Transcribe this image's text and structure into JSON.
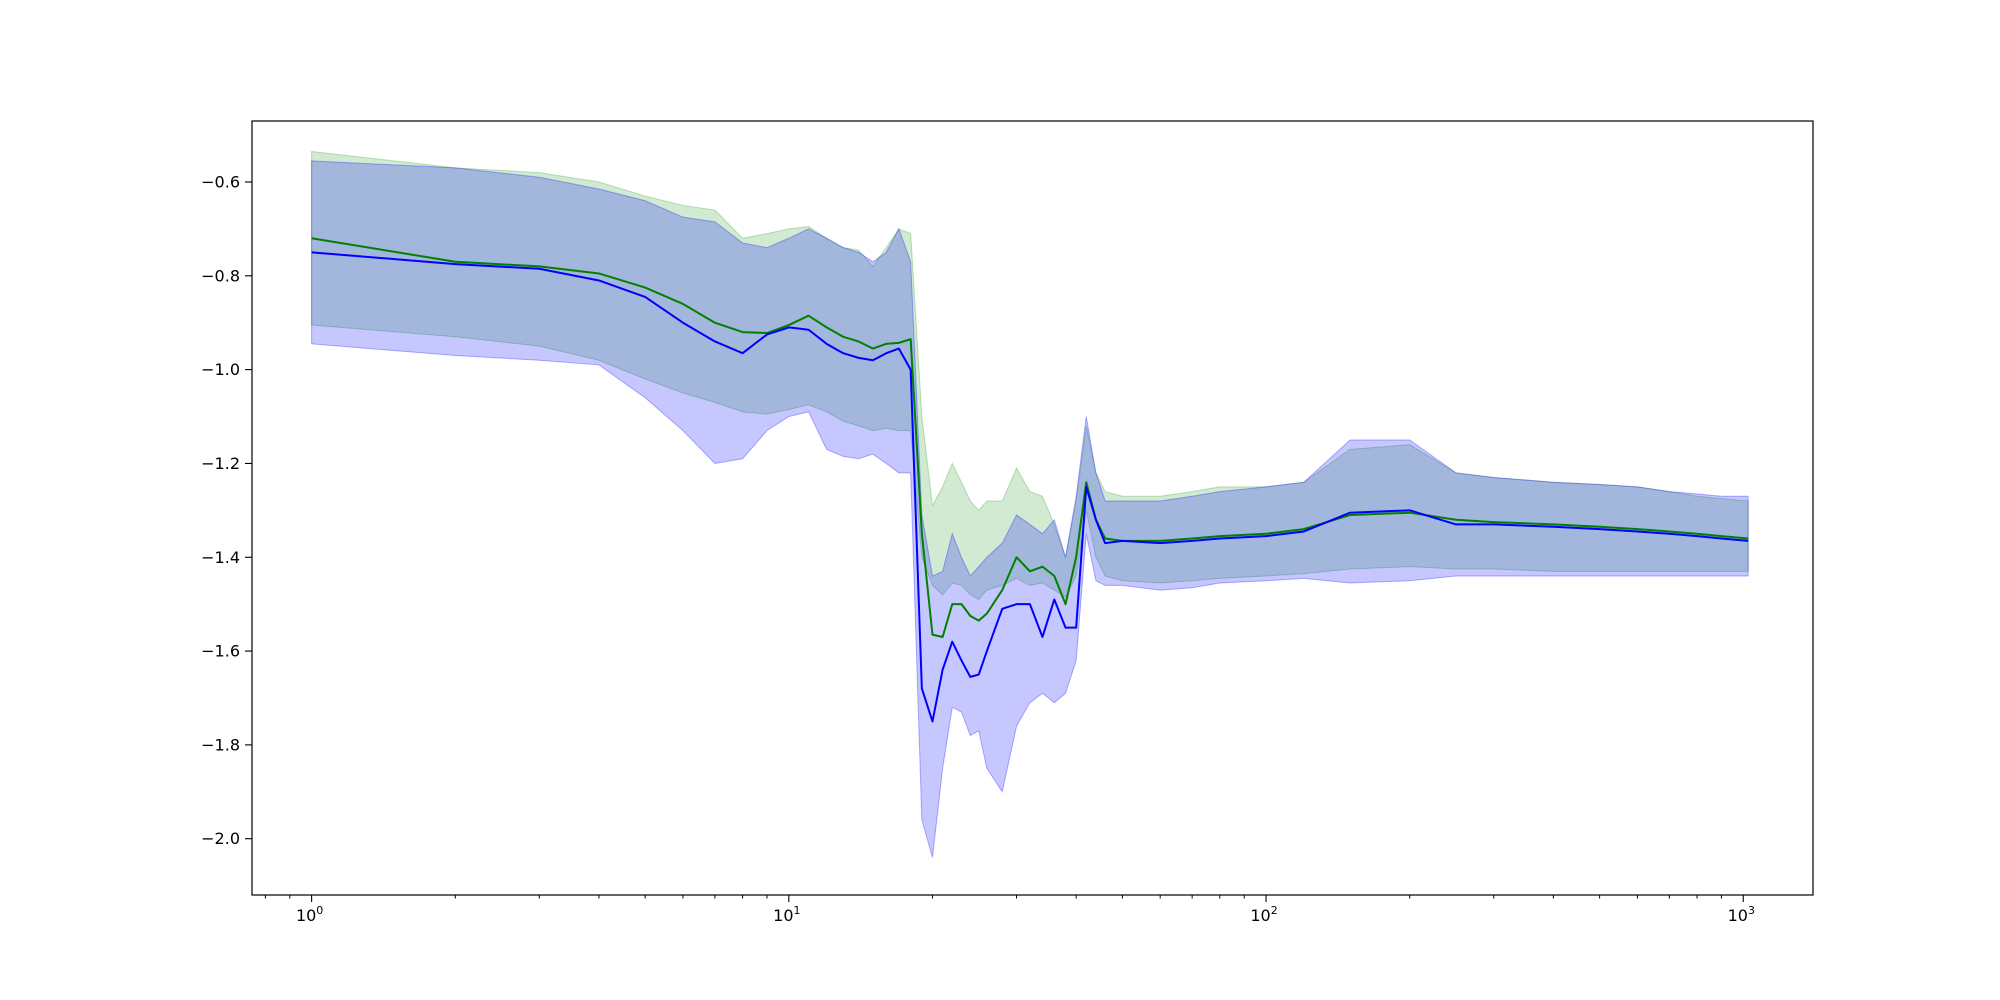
{
  "chart_data": {
    "type": "line",
    "title": "",
    "xlabel": "",
    "ylabel": "",
    "x_scale": "log",
    "xlim": [
      0.75,
      1400
    ],
    "ylim": [
      -2.12,
      -0.47
    ],
    "x_ticks": [
      {
        "value": 1,
        "base": "10",
        "exp": "0"
      },
      {
        "value": 10,
        "base": "10",
        "exp": "1"
      },
      {
        "value": 100,
        "base": "10",
        "exp": "2"
      },
      {
        "value": 1000,
        "base": "10",
        "exp": "3"
      }
    ],
    "y_ticks": [
      {
        "value": -0.6,
        "label": "−0.6"
      },
      {
        "value": -0.8,
        "label": "−0.8"
      },
      {
        "value": -1.0,
        "label": "−1.0"
      },
      {
        "value": -1.2,
        "label": "−1.2"
      },
      {
        "value": -1.4,
        "label": "−1.4"
      },
      {
        "value": -1.6,
        "label": "−1.6"
      },
      {
        "value": -1.8,
        "label": "−1.8"
      },
      {
        "value": -2.0,
        "label": "−2.0"
      }
    ],
    "grid": false,
    "legend": "none",
    "series": [
      {
        "color": "#008000",
        "band_color": "#2ca02c",
        "x": [
          1,
          2,
          3,
          4,
          5,
          6,
          7,
          8,
          9,
          10,
          11,
          12,
          13,
          14,
          15,
          16,
          17,
          18,
          19,
          20,
          21,
          22,
          23,
          24,
          25,
          26,
          28,
          30,
          32,
          34,
          36,
          38,
          40,
          42,
          44,
          46,
          50,
          60,
          70,
          80,
          100,
          120,
          150,
          200,
          250,
          300,
          400,
          500,
          600,
          700,
          800,
          900,
          1024
        ],
        "values": [
          -0.72,
          -0.77,
          -0.78,
          -0.795,
          -0.825,
          -0.86,
          -0.9,
          -0.92,
          -0.922,
          -0.905,
          -0.885,
          -0.91,
          -0.93,
          -0.94,
          -0.955,
          -0.945,
          -0.943,
          -0.935,
          -1.35,
          -1.565,
          -1.57,
          -1.5,
          -1.5,
          -1.525,
          -1.535,
          -1.52,
          -1.47,
          -1.4,
          -1.43,
          -1.42,
          -1.44,
          -1.5,
          -1.4,
          -1.24,
          -1.32,
          -1.36,
          -1.365,
          -1.365,
          -1.36,
          -1.355,
          -1.35,
          -1.34,
          -1.31,
          -1.305,
          -1.32,
          -1.325,
          -1.33,
          -1.335,
          -1.34,
          -1.345,
          -1.35,
          -1.355,
          -1.36
        ],
        "lower": [
          -0.905,
          -0.93,
          -0.95,
          -0.98,
          -1.02,
          -1.05,
          -1.07,
          -1.09,
          -1.095,
          -1.085,
          -1.075,
          -1.09,
          -1.11,
          -1.12,
          -1.13,
          -1.125,
          -1.13,
          -1.13,
          -1.4,
          -1.46,
          -1.48,
          -1.455,
          -1.46,
          -1.48,
          -1.49,
          -1.47,
          -1.46,
          -1.445,
          -1.46,
          -1.455,
          -1.47,
          -1.485,
          -1.44,
          -1.3,
          -1.4,
          -1.44,
          -1.45,
          -1.455,
          -1.45,
          -1.445,
          -1.44,
          -1.435,
          -1.425,
          -1.42,
          -1.425,
          -1.425,
          -1.43,
          -1.43,
          -1.43,
          -1.43,
          -1.43,
          -1.43,
          -1.43
        ],
        "upper": [
          -0.535,
          -0.57,
          -0.58,
          -0.6,
          -0.63,
          -0.65,
          -0.66,
          -0.72,
          -0.71,
          -0.7,
          -0.695,
          -0.72,
          -0.74,
          -0.745,
          -0.78,
          -0.74,
          -0.7,
          -0.71,
          -1.1,
          -1.29,
          -1.25,
          -1.2,
          -1.24,
          -1.28,
          -1.3,
          -1.28,
          -1.28,
          -1.21,
          -1.26,
          -1.27,
          -1.33,
          -1.4,
          -1.28,
          -1.12,
          -1.22,
          -1.26,
          -1.27,
          -1.27,
          -1.26,
          -1.25,
          -1.25,
          -1.24,
          -1.17,
          -1.16,
          -1.22,
          -1.23,
          -1.24,
          -1.245,
          -1.25,
          -1.26,
          -1.27,
          -1.275,
          -1.28
        ]
      },
      {
        "color": "#0000ff",
        "band_color": "#0000ff",
        "x": [
          1,
          2,
          3,
          4,
          5,
          6,
          7,
          8,
          9,
          10,
          11,
          12,
          13,
          14,
          15,
          16,
          17,
          18,
          19,
          20,
          21,
          22,
          23,
          24,
          25,
          26,
          28,
          30,
          32,
          34,
          36,
          38,
          40,
          42,
          44,
          46,
          50,
          60,
          70,
          80,
          100,
          120,
          150,
          200,
          250,
          300,
          400,
          500,
          600,
          700,
          800,
          900,
          1024
        ],
        "values": [
          -0.75,
          -0.775,
          -0.785,
          -0.81,
          -0.845,
          -0.9,
          -0.94,
          -0.965,
          -0.925,
          -0.91,
          -0.915,
          -0.945,
          -0.965,
          -0.975,
          -0.98,
          -0.965,
          -0.955,
          -1.0,
          -1.68,
          -1.75,
          -1.64,
          -1.58,
          -1.62,
          -1.655,
          -1.65,
          -1.6,
          -1.51,
          -1.5,
          -1.5,
          -1.57,
          -1.49,
          -1.55,
          -1.55,
          -1.25,
          -1.32,
          -1.37,
          -1.365,
          -1.37,
          -1.365,
          -1.36,
          -1.355,
          -1.345,
          -1.305,
          -1.3,
          -1.33,
          -1.33,
          -1.335,
          -1.34,
          -1.345,
          -1.35,
          -1.355,
          -1.36,
          -1.365
        ],
        "lower": [
          -0.945,
          -0.97,
          -0.98,
          -0.99,
          -1.06,
          -1.13,
          -1.2,
          -1.19,
          -1.13,
          -1.1,
          -1.09,
          -1.17,
          -1.185,
          -1.19,
          -1.18,
          -1.2,
          -1.22,
          -1.22,
          -1.96,
          -2.04,
          -1.85,
          -1.72,
          -1.73,
          -1.78,
          -1.77,
          -1.85,
          -1.9,
          -1.76,
          -1.71,
          -1.69,
          -1.71,
          -1.69,
          -1.62,
          -1.35,
          -1.45,
          -1.46,
          -1.46,
          -1.47,
          -1.465,
          -1.455,
          -1.45,
          -1.445,
          -1.455,
          -1.45,
          -1.44,
          -1.44,
          -1.44,
          -1.44,
          -1.44,
          -1.44,
          -1.44,
          -1.44,
          -1.44
        ],
        "upper": [
          -0.555,
          -0.57,
          -0.59,
          -0.615,
          -0.64,
          -0.675,
          -0.685,
          -0.73,
          -0.74,
          -0.72,
          -0.7,
          -0.72,
          -0.74,
          -0.75,
          -0.77,
          -0.75,
          -0.7,
          -0.77,
          -1.31,
          -1.44,
          -1.43,
          -1.35,
          -1.4,
          -1.44,
          -1.42,
          -1.4,
          -1.37,
          -1.31,
          -1.33,
          -1.35,
          -1.32,
          -1.4,
          -1.27,
          -1.1,
          -1.22,
          -1.28,
          -1.28,
          -1.28,
          -1.27,
          -1.26,
          -1.25,
          -1.24,
          -1.15,
          -1.15,
          -1.22,
          -1.23,
          -1.24,
          -1.245,
          -1.25,
          -1.26,
          -1.265,
          -1.27,
          -1.27
        ]
      }
    ]
  }
}
